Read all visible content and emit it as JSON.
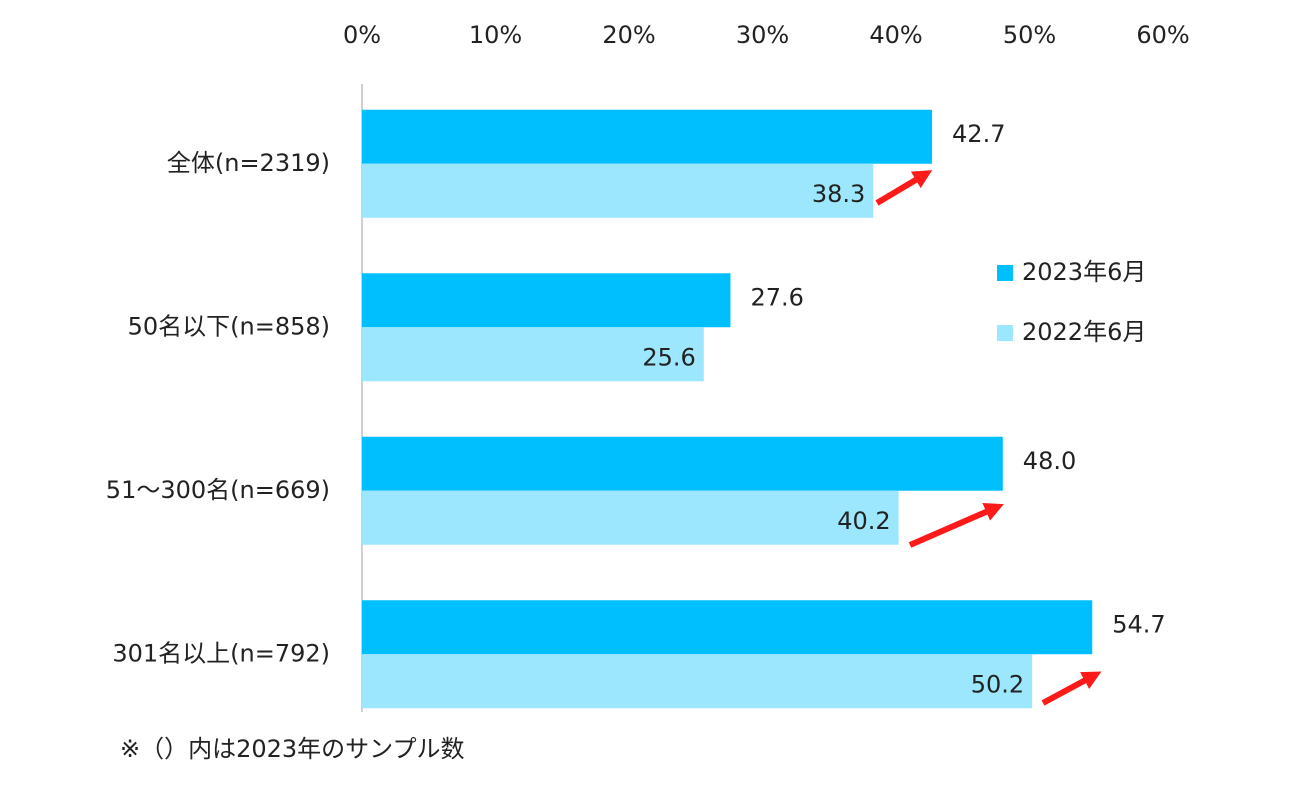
{
  "chart_data": {
    "type": "bar",
    "orientation": "horizontal",
    "categories": [
      "全体(n=2319)",
      "50名以下(n=858)",
      "51～300名(n=669)",
      "301名以上(n=792)"
    ],
    "series": [
      {
        "name": "2023年6月",
        "color": "#00bfff",
        "values": [
          42.7,
          27.6,
          48.0,
          54.7
        ],
        "value_labels": [
          "42.7",
          "27.6",
          "48.0",
          "54.7"
        ]
      },
      {
        "name": "2022年6月",
        "color": "#9de7fe",
        "values": [
          38.3,
          25.6,
          40.2,
          50.2
        ],
        "value_labels": [
          "38.3",
          "25.6",
          "40.2",
          "50.2"
        ]
      }
    ],
    "xlim": [
      0,
      60
    ],
    "xticks": [
      {
        "value": 0,
        "label": "0%"
      },
      {
        "value": 10,
        "label": "10%"
      },
      {
        "value": 20,
        "label": "20%"
      },
      {
        "value": 30,
        "label": "30%"
      },
      {
        "value": 40,
        "label": "40%"
      },
      {
        "value": 50,
        "label": "50%"
      },
      {
        "value": 60,
        "label": "60%"
      }
    ],
    "grid": false,
    "legend": "right",
    "note": "※（）内は2023年のサンプル数"
  }
}
